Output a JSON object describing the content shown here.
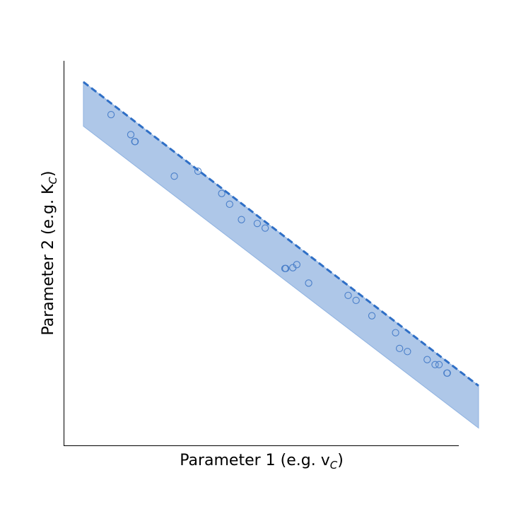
{
  "chart_data": {
    "type": "scatter",
    "title": "",
    "xlabel": "Parameter 1 (e.g. v",
    "xlabel_subscript": "C",
    "xlabel_suffix": ")",
    "ylabel": "Parameter 2 (e.g. K",
    "ylabel_subscript": "C",
    "ylabel_suffix": ")",
    "xlim": [
      0,
      10
    ],
    "ylim": [
      0,
      10
    ],
    "grid": false,
    "ticks_visible": false,
    "band": {
      "x": [
        0.5,
        10.5
      ],
      "upper": [
        9.45,
        1.55
      ],
      "lower": [
        8.3,
        0.45
      ],
      "fill_color": "#aec7e8",
      "edge_color": "#1f5fbf",
      "line_style": "dashed"
    },
    "points": {
      "marker": "open-circle",
      "color": "#4a7fc9",
      "x": [
        1.2,
        1.7,
        1.8,
        1.81,
        2.8,
        3.4,
        4.0,
        4.2,
        4.5,
        4.9,
        5.1,
        5.6,
        5.62,
        5.8,
        5.9,
        6.2,
        7.2,
        7.4,
        7.8,
        8.4,
        8.5,
        8.7,
        9.2,
        9.4,
        9.5,
        9.7,
        9.71
      ],
      "y": [
        8.6,
        8.08,
        7.9,
        7.9,
        7.0,
        7.13,
        6.55,
        6.27,
        5.87,
        5.77,
        5.65,
        4.6,
        4.6,
        4.62,
        4.7,
        4.22,
        3.9,
        3.77,
        3.37,
        2.93,
        2.52,
        2.44,
        2.23,
        2.1,
        2.1,
        1.88,
        1.88
      ]
    }
  }
}
